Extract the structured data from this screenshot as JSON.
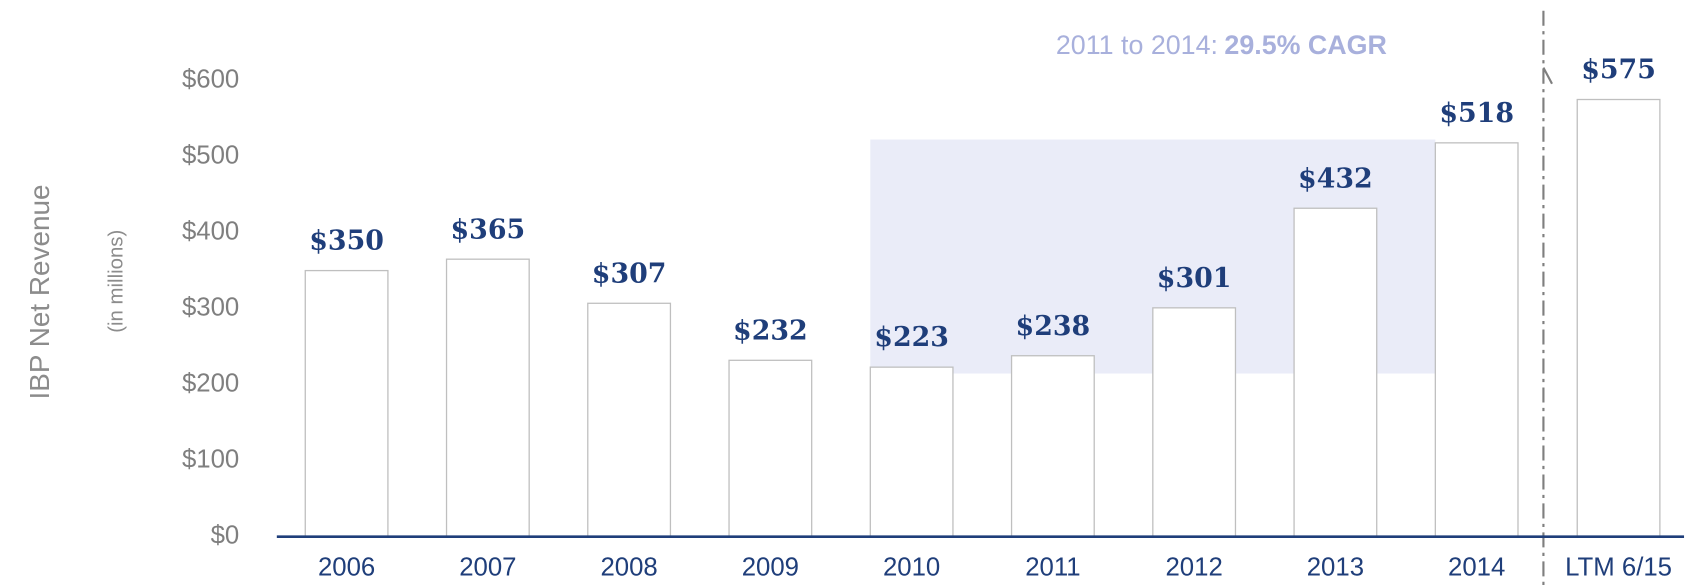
{
  "chart_data": {
    "type": "bar",
    "y_axis_label": "IBP Net Revenue",
    "y_axis_sublabel": "(in millions)",
    "annotation": {
      "text": "2011 to 2014:",
      "highlight": "29.5% CAGR"
    },
    "categories": [
      "2006",
      "2007",
      "2008",
      "2009",
      "2010",
      "2011",
      "2012",
      "2013",
      "2014",
      "LTM 6/15"
    ],
    "values": [
      350,
      365,
      307,
      232,
      223,
      238,
      301,
      432,
      518,
      575
    ],
    "value_labels": [
      "$350",
      "$365",
      "$307",
      "$232",
      "$223",
      "$238",
      "$301",
      "$432",
      "$518",
      "$575"
    ],
    "color": "#ffffff",
    "ylim": [
      0,
      600
    ],
    "yticks": [
      {
        "value": 0,
        "label": "$0"
      },
      {
        "value": 100,
        "label": "$100"
      },
      {
        "value": 200,
        "label": "$200"
      },
      {
        "value": 300,
        "label": "$300"
      },
      {
        "value": 400,
        "label": "$400"
      },
      {
        "value": 500,
        "label": "$500"
      },
      {
        "value": 600,
        "label": "$600"
      }
    ],
    "grid": false
  }
}
